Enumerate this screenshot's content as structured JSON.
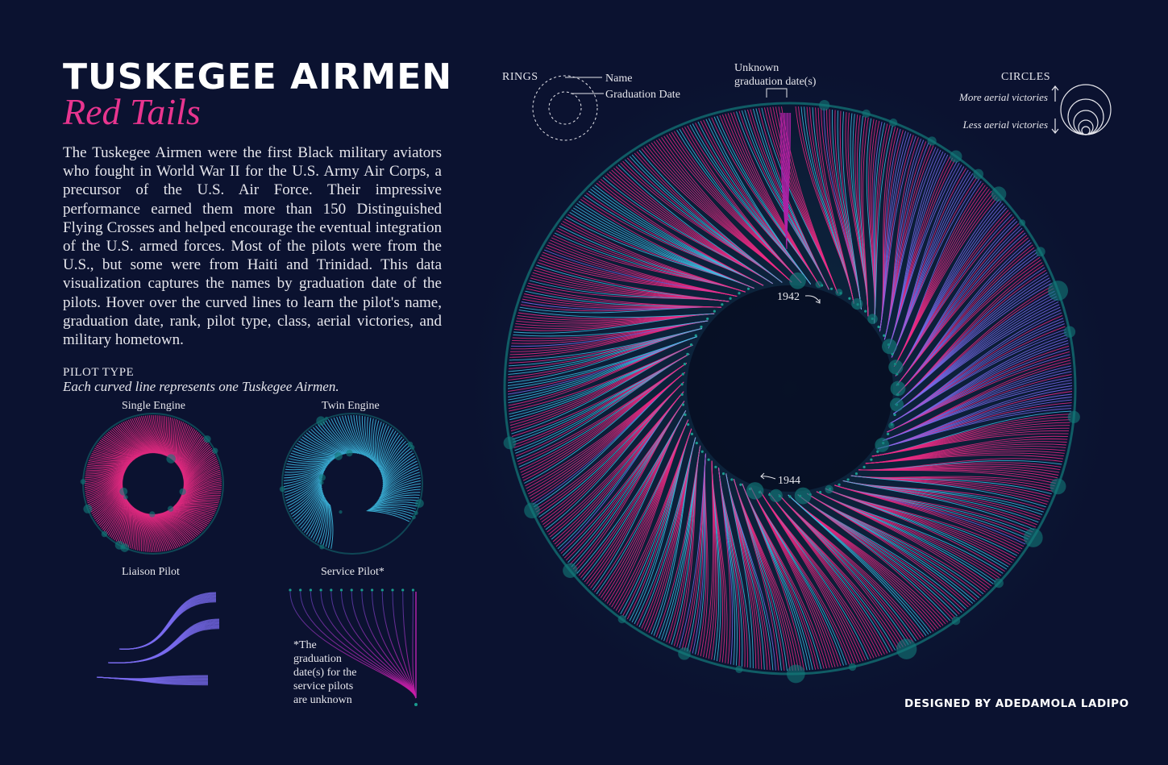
{
  "header": {
    "title": "TUSKEGEE AIRMEN",
    "subtitle": "Red Tails",
    "description": "The Tuskegee Airmen were the first Black military aviators who fought in World War II for the U.S. Army Air Corps, a precursor of the U.S. Air Force. Their impressive performance earned them more than 150 Distinguished Flying Crosses and helped encourage the eventual integration of the U.S. armed forces. Most of the pilots were from the U.S., but some were from Haiti and Trinidad. This data visualization captures the names by graduation date of the pilots. Hover over the curved lines to learn the pilot's name, graduation date, rank, pilot type, class, aerial victories, and military hometown."
  },
  "pilot_type": {
    "heading": "PILOT TYPE",
    "subheading": "Each curved line represents one Tuskegee Airmen.",
    "panels": [
      {
        "label": "Single Engine",
        "color": "#f02a85"
      },
      {
        "label": "Twin Engine",
        "color": "#3fc3ea"
      },
      {
        "label": "Liaison Pilot",
        "color": "#7b6cf0"
      },
      {
        "label": "Service Pilot*",
        "color": "#b021a8"
      }
    ],
    "note": "*The graduation date(s) for the service pilots are unknown"
  },
  "legend": {
    "rings_title": "RINGS",
    "ring_name": "Name",
    "ring_date": "Graduation Date",
    "unknown_label_line1": "Unknown",
    "unknown_label_line2": "graduation date(s)",
    "circles_title": "CIRCLES",
    "more_victories": "More aerial victories",
    "less_victories": "Less aerial victories"
  },
  "annotations": {
    "year_1942": "1942",
    "year_1944": "1944"
  },
  "credit": "DESIGNED BY ADEDAMOLA LADIPO",
  "colors": {
    "background": "#0b1230",
    "single_engine": "#f02a85",
    "twin_engine": "#3fc3ea",
    "liaison": "#7b6cf0",
    "service": "#b021a8",
    "victory_circle": "#137a7a"
  },
  "chart_data": {
    "type": "radial",
    "encoding": "one curved line per pilot, linking the outer name ring to the inner graduation date ring; circles on the outer ring sized by aerial victories",
    "series": [
      {
        "name": "Single Engine",
        "color": "#f02a85"
      },
      {
        "name": "Twin Engine",
        "color": "#3fc3ea"
      },
      {
        "name": "Liaison Pilot",
        "color": "#7b6cf0"
      },
      {
        "name": "Service Pilot*",
        "color": "#b021a8"
      }
    ],
    "date_ring_annotations": [
      "1942",
      "1944"
    ]
  }
}
